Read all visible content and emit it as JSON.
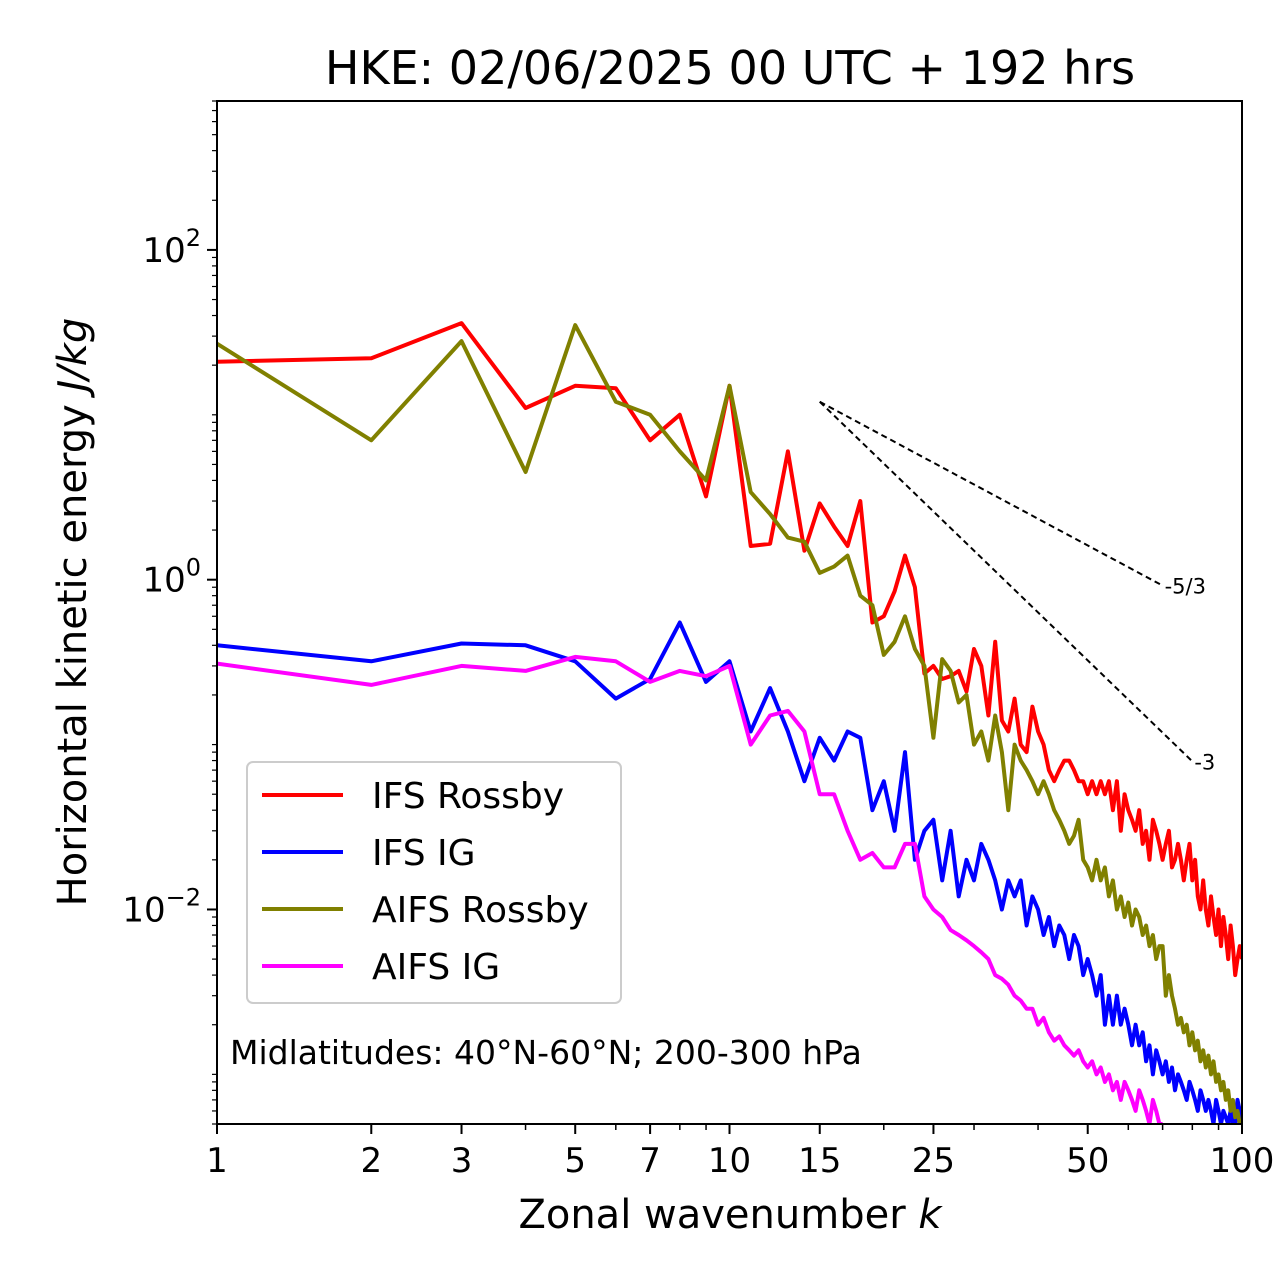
{
  "chart_data": {
    "type": "line",
    "title": "HKE: 02/06/2025 00 UTC + 192 hrs",
    "xlabel": "Zonal wavenumber",
    "xlabel_var": "k",
    "ylabel": "Horizontal kinetic energy",
    "ylabel_unit": "J/kg",
    "xscale": "log",
    "yscale": "log",
    "xlim": [
      1,
      100
    ],
    "ylim": [
      0.0005,
      800
    ],
    "xticks": [
      {
        "value": 1,
        "label": "1"
      },
      {
        "value": 2,
        "label": "2"
      },
      {
        "value": 3,
        "label": "3"
      },
      {
        "value": 5,
        "label": "5"
      },
      {
        "value": 7,
        "label": "7"
      },
      {
        "value": 10,
        "label": "10"
      },
      {
        "value": 15,
        "label": "15"
      },
      {
        "value": 25,
        "label": "25"
      },
      {
        "value": 50,
        "label": "50"
      },
      {
        "value": 100,
        "label": "100"
      }
    ],
    "yticks": [
      {
        "value": 0.01,
        "base": "10",
        "exp": "−2"
      },
      {
        "value": 1,
        "base": "10",
        "exp": "0"
      },
      {
        "value": 100,
        "base": "10",
        "exp": "2"
      }
    ],
    "grid": false,
    "legend_position": "lower-left",
    "annotation": "Midlatitudes: 40°N-60°N; 200-300 hPa",
    "reference_lines": [
      {
        "label": "-5/3",
        "slope": -1.6667,
        "x": [
          15,
          70
        ],
        "y0": 12
      },
      {
        "label": "-3",
        "slope": -3,
        "x": [
          15,
          80
        ],
        "y0": 12
      }
    ],
    "series": [
      {
        "name": "IFS Rossby",
        "color": "#ff0000",
        "x": [
          1,
          2,
          3,
          4,
          5,
          6,
          7,
          8,
          9,
          10,
          11,
          12,
          13,
          14,
          15,
          16,
          17,
          18,
          19,
          20,
          21,
          22,
          23,
          24,
          25,
          26,
          27,
          28,
          29,
          30,
          31,
          32,
          33,
          34,
          35,
          36,
          37,
          38,
          39,
          40,
          41,
          42,
          43,
          44,
          45,
          46,
          47,
          48,
          49,
          50,
          51,
          52,
          53,
          54,
          55,
          56,
          57,
          58,
          59,
          60,
          61,
          62,
          63,
          64,
          65,
          66,
          67,
          68,
          69,
          70,
          71,
          72,
          73,
          74,
          75,
          76,
          77,
          78,
          79,
          80,
          81,
          82,
          83,
          84,
          85,
          86,
          87,
          88,
          89,
          90,
          91,
          92,
          93,
          94,
          95,
          96,
          97,
          98,
          99,
          100
        ],
        "y": [
          21,
          22,
          36,
          11,
          15,
          14.5,
          7,
          10,
          3.2,
          15,
          1.6,
          1.65,
          6,
          1.5,
          2.9,
          2.1,
          1.6,
          3,
          0.55,
          0.6,
          0.85,
          1.4,
          0.9,
          0.27,
          0.3,
          0.25,
          0.26,
          0.28,
          0.21,
          0.38,
          0.3,
          0.15,
          0.42,
          0.14,
          0.12,
          0.19,
          0.1,
          0.09,
          0.17,
          0.12,
          0.1,
          0.07,
          0.06,
          0.07,
          0.08,
          0.08,
          0.07,
          0.06,
          0.06,
          0.05,
          0.06,
          0.05,
          0.06,
          0.05,
          0.06,
          0.04,
          0.06,
          0.03,
          0.05,
          0.04,
          0.035,
          0.03,
          0.04,
          0.025,
          0.03,
          0.02,
          0.035,
          0.03,
          0.025,
          0.02,
          0.025,
          0.03,
          0.018,
          0.02,
          0.025,
          0.02,
          0.015,
          0.02,
          0.025,
          0.015,
          0.02,
          0.012,
          0.01,
          0.015,
          0.01,
          0.008,
          0.012,
          0.009,
          0.007,
          0.01,
          0.006,
          0.009,
          0.007,
          0.005,
          0.008,
          0.006,
          0.004,
          0.005,
          0.006,
          0.005
        ]
      },
      {
        "name": "IFS IG",
        "color": "#0000ff",
        "x": [
          1,
          2,
          3,
          4,
          5,
          6,
          7,
          8,
          9,
          10,
          11,
          12,
          13,
          14,
          15,
          16,
          17,
          18,
          19,
          20,
          21,
          22,
          23,
          24,
          25,
          26,
          27,
          28,
          29,
          30,
          31,
          32,
          33,
          34,
          35,
          36,
          37,
          38,
          39,
          40,
          41,
          42,
          43,
          44,
          45,
          46,
          47,
          48,
          49,
          50,
          51,
          52,
          53,
          54,
          55,
          56,
          57,
          58,
          59,
          60,
          61,
          62,
          63,
          64,
          65,
          66,
          67,
          68,
          69,
          70,
          71,
          72,
          73,
          74,
          75,
          76,
          77,
          78,
          79,
          80,
          81,
          82,
          83,
          84,
          85,
          86,
          87,
          88,
          89,
          90,
          91,
          92,
          93,
          94,
          95,
          96,
          97,
          98,
          99,
          100
        ],
        "y": [
          0.4,
          0.32,
          0.41,
          0.4,
          0.32,
          0.19,
          0.25,
          0.55,
          0.24,
          0.32,
          0.12,
          0.22,
          0.12,
          0.06,
          0.11,
          0.08,
          0.12,
          0.11,
          0.04,
          0.06,
          0.03,
          0.09,
          0.02,
          0.03,
          0.035,
          0.015,
          0.03,
          0.012,
          0.02,
          0.015,
          0.025,
          0.02,
          0.015,
          0.01,
          0.015,
          0.012,
          0.015,
          0.008,
          0.012,
          0.01,
          0.007,
          0.009,
          0.006,
          0.008,
          0.007,
          0.005,
          0.007,
          0.006,
          0.004,
          0.005,
          0.004,
          0.003,
          0.004,
          0.002,
          0.003,
          0.002,
          0.003,
          0.002,
          0.0025,
          0.002,
          0.0015,
          0.002,
          0.0015,
          0.0018,
          0.0012,
          0.0015,
          0.001,
          0.0014,
          0.0012,
          0.001,
          0.0012,
          0.0009,
          0.0011,
          0.0008,
          0.001,
          0.0009,
          0.0008,
          0.0007,
          0.0009,
          0.0008,
          0.0007,
          0.0006,
          0.0008,
          0.0007,
          0.0006,
          0.0007,
          0.0006,
          0.0005,
          0.0007,
          0.0006,
          0.0005,
          0.0006,
          0.00055,
          0.0005,
          0.0006,
          0.0005,
          0.0005,
          0.0007,
          0.0006,
          0.0005
        ]
      },
      {
        "name": "AIFS Rossby",
        "color": "#808000",
        "x": [
          1,
          2,
          3,
          4,
          5,
          6,
          7,
          8,
          9,
          10,
          11,
          12,
          13,
          14,
          15,
          16,
          17,
          18,
          19,
          20,
          21,
          22,
          23,
          24,
          25,
          26,
          27,
          28,
          29,
          30,
          31,
          32,
          33,
          34,
          35,
          36,
          37,
          38,
          39,
          40,
          41,
          42,
          43,
          44,
          45,
          46,
          47,
          48,
          49,
          50,
          51,
          52,
          53,
          54,
          55,
          56,
          57,
          58,
          59,
          60,
          61,
          62,
          63,
          64,
          65,
          66,
          67,
          68,
          69,
          70,
          71,
          72,
          73,
          74,
          75,
          76,
          77,
          78,
          79,
          80,
          81,
          82,
          83,
          84,
          85,
          86,
          87,
          88,
          89,
          90,
          91,
          92,
          93,
          94,
          95,
          96,
          97,
          98,
          99,
          100
        ],
        "y": [
          27,
          7,
          28,
          4.5,
          35,
          12,
          10,
          6,
          4,
          15,
          3.4,
          2.5,
          1.8,
          1.7,
          1.1,
          1.2,
          1.4,
          0.8,
          0.7,
          0.35,
          0.42,
          0.6,
          0.38,
          0.3,
          0.11,
          0.33,
          0.28,
          0.18,
          0.2,
          0.1,
          0.12,
          0.08,
          0.15,
          0.09,
          0.04,
          0.1,
          0.08,
          0.07,
          0.06,
          0.05,
          0.06,
          0.05,
          0.04,
          0.035,
          0.03,
          0.025,
          0.028,
          0.035,
          0.02,
          0.018,
          0.015,
          0.02,
          0.015,
          0.018,
          0.012,
          0.015,
          0.01,
          0.012,
          0.009,
          0.011,
          0.008,
          0.01,
          0.009,
          0.007,
          0.008,
          0.006,
          0.007,
          0.005,
          0.006,
          0.006,
          0.003,
          0.004,
          0.003,
          0.0025,
          0.002,
          0.0022,
          0.0018,
          0.002,
          0.0015,
          0.0018,
          0.0014,
          0.0016,
          0.0012,
          0.0014,
          0.0011,
          0.0013,
          0.001,
          0.0012,
          0.0009,
          0.001,
          0.0008,
          0.0009,
          0.0007,
          0.0008,
          0.0006,
          0.0007,
          0.00055,
          0.0006,
          0.0005,
          0.0005
        ]
      },
      {
        "name": "AIFS IG",
        "color": "#ff00ff",
        "x": [
          1,
          2,
          3,
          4,
          5,
          6,
          7,
          8,
          9,
          10,
          11,
          12,
          13,
          14,
          15,
          16,
          17,
          18,
          19,
          20,
          21,
          22,
          23,
          24,
          25,
          26,
          27,
          28,
          29,
          30,
          31,
          32,
          33,
          34,
          35,
          36,
          37,
          38,
          39,
          40,
          41,
          42,
          43,
          44,
          45,
          46,
          47,
          48,
          49,
          50,
          51,
          52,
          53,
          54,
          55,
          56,
          57,
          58,
          59,
          60,
          61,
          62,
          63,
          64,
          65,
          66,
          67,
          68,
          69,
          70
        ],
        "y": [
          0.31,
          0.23,
          0.3,
          0.28,
          0.34,
          0.32,
          0.24,
          0.28,
          0.26,
          0.3,
          0.1,
          0.15,
          0.16,
          0.12,
          0.05,
          0.05,
          0.03,
          0.02,
          0.022,
          0.018,
          0.018,
          0.025,
          0.025,
          0.012,
          0.01,
          0.009,
          0.0075,
          0.007,
          0.0065,
          0.006,
          0.0055,
          0.005,
          0.004,
          0.0038,
          0.0035,
          0.003,
          0.0028,
          0.0025,
          0.0025,
          0.002,
          0.0022,
          0.0018,
          0.0016,
          0.0017,
          0.0015,
          0.0014,
          0.0013,
          0.0014,
          0.0012,
          0.0011,
          0.0012,
          0.001,
          0.0011,
          0.0009,
          0.001,
          0.0008,
          0.0009,
          0.0007,
          0.0009,
          0.0008,
          0.0007,
          0.0006,
          0.0008,
          0.0007,
          0.0006,
          0.0005,
          0.0007,
          0.0006,
          0.0005,
          0.0005
        ]
      }
    ]
  }
}
